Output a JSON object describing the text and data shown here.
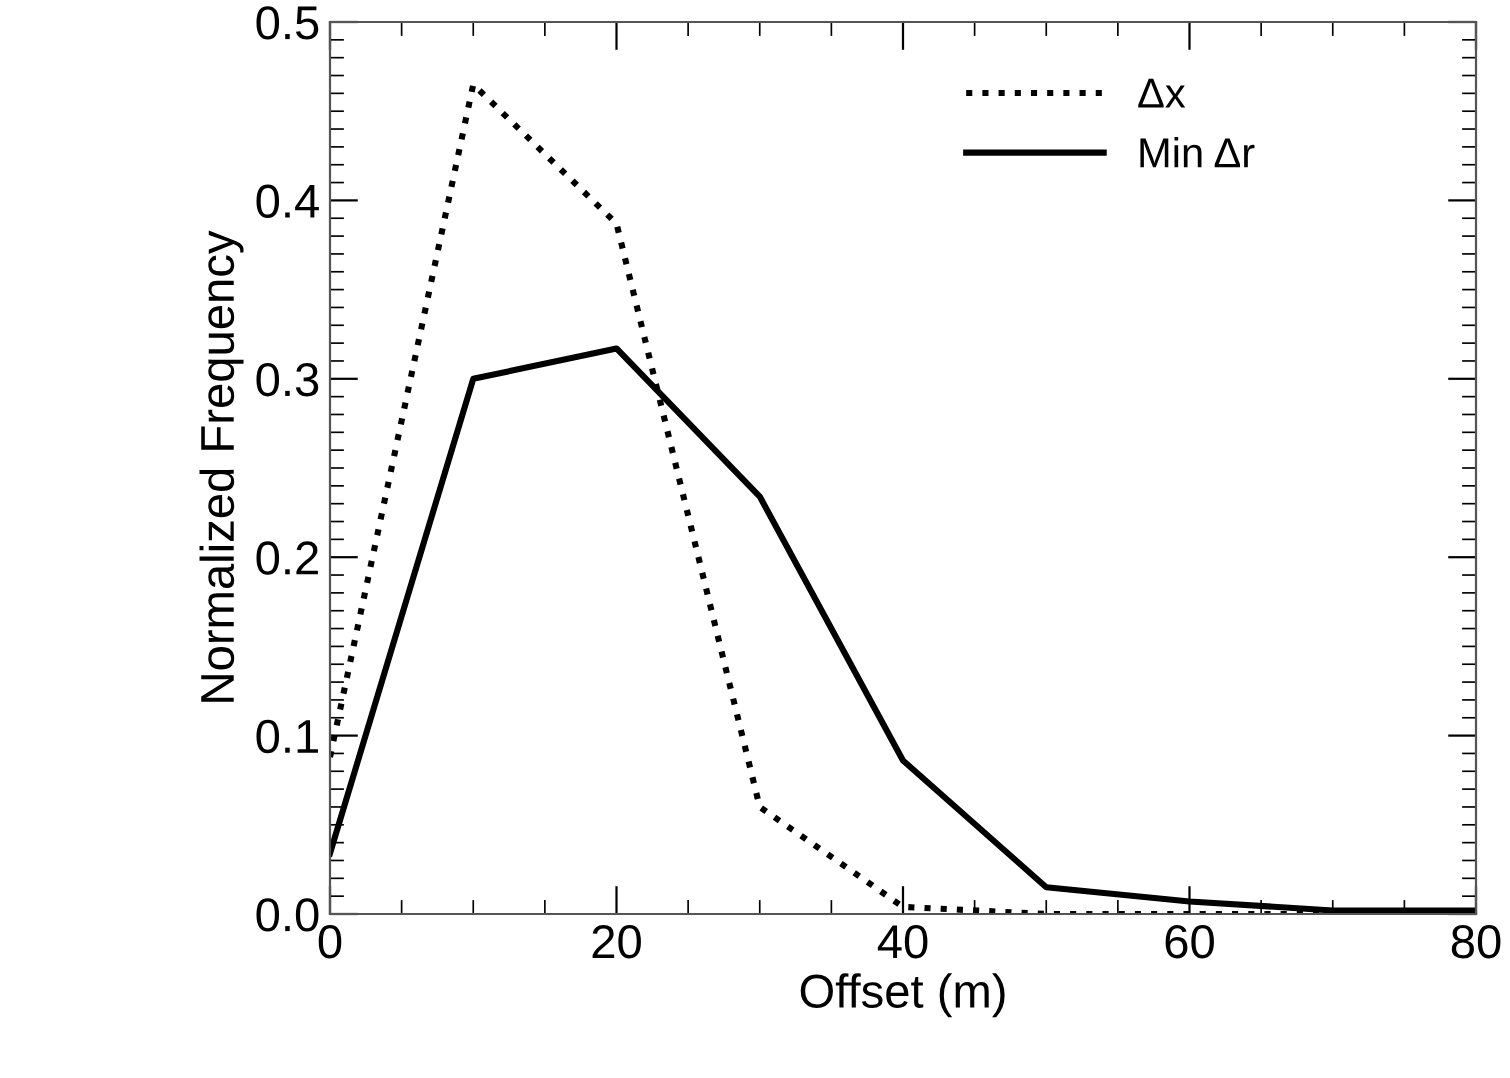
{
  "chart_data": {
    "type": "line",
    "xlabel": "Offset (m)",
    "ylabel": "Normalized Frequency",
    "x": [
      0,
      10,
      20,
      30,
      40,
      50,
      60,
      70,
      80
    ],
    "series": [
      {
        "name": "Δx",
        "color": "#000000",
        "line_style": "dotted",
        "values": [
          0.088,
          0.465,
          0.387,
          0.06,
          0.004,
          0.0,
          0.0,
          0.0,
          0.0
        ]
      },
      {
        "name": "Min Δr",
        "color": "#000000",
        "line_style": "solid",
        "values": [
          0.034,
          0.3,
          0.317,
          0.234,
          0.086,
          0.015,
          0.007,
          0.002,
          0.002
        ]
      }
    ],
    "xlim": [
      0,
      80
    ],
    "xticks": [
      0,
      20,
      40,
      60,
      80
    ],
    "ylim": [
      0,
      0.5
    ],
    "yticks": [
      {
        "value": 0,
        "label": "0.0"
      },
      0.1,
      0.2,
      0.3,
      0.4,
      0.5
    ],
    "grid": false,
    "legend": "top right",
    "marker": "none"
  }
}
